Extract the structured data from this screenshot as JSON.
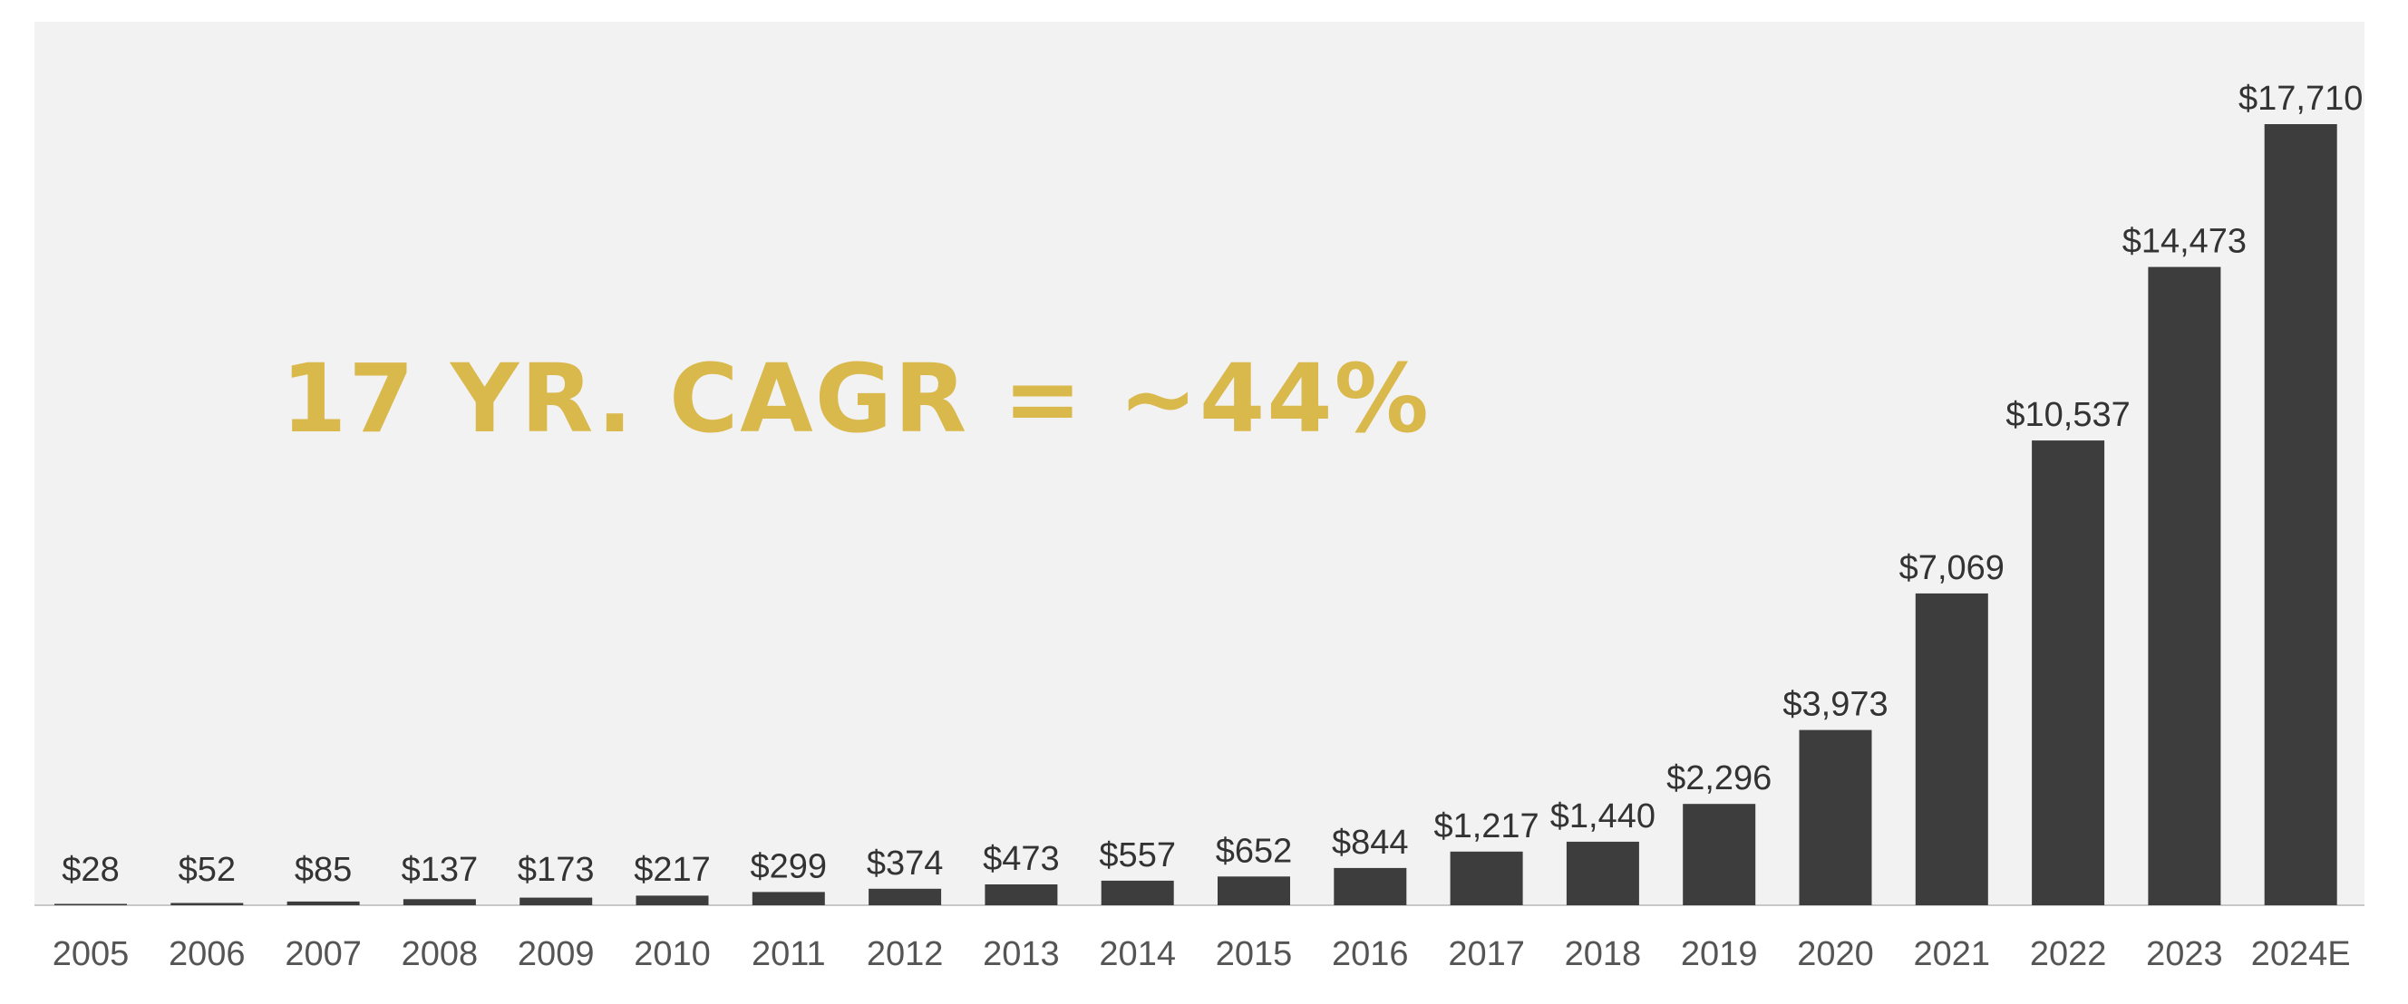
{
  "colors": {
    "plot_background": "#f2f2f2",
    "bar": "#3d3d3d",
    "value_label": "#333333",
    "tick_label": "#555555",
    "annotation": "#d9b84c",
    "axis_line": "#c8c8c8"
  },
  "annotation": {
    "text": "17 YR. CAGR = ~44%"
  },
  "chart_data": {
    "type": "bar",
    "title": "",
    "xlabel": "",
    "ylabel": "",
    "grid": false,
    "legend": "none",
    "ylim": [
      0,
      19500
    ],
    "categories": [
      "2005",
      "2006",
      "2007",
      "2008",
      "2009",
      "2010",
      "2011",
      "2012",
      "2013",
      "2014",
      "2015",
      "2016",
      "2017",
      "2018",
      "2019",
      "2020",
      "2021",
      "2022",
      "2023",
      "2024E"
    ],
    "values": [
      28,
      52,
      85,
      137,
      173,
      217,
      299,
      374,
      473,
      557,
      652,
      844,
      1217,
      1440,
      2296,
      3973,
      7069,
      10537,
      14473,
      17710
    ],
    "value_labels": [
      "$28",
      "$52",
      "$85",
      "$137",
      "$173",
      "$217",
      "$299",
      "$374",
      "$473",
      "$557",
      "$652",
      "$844",
      "$1,217",
      "$1,440",
      "$2,296",
      "$3,973",
      "$7,069",
      "$10,537",
      "$14,473",
      "$17,710"
    ]
  }
}
